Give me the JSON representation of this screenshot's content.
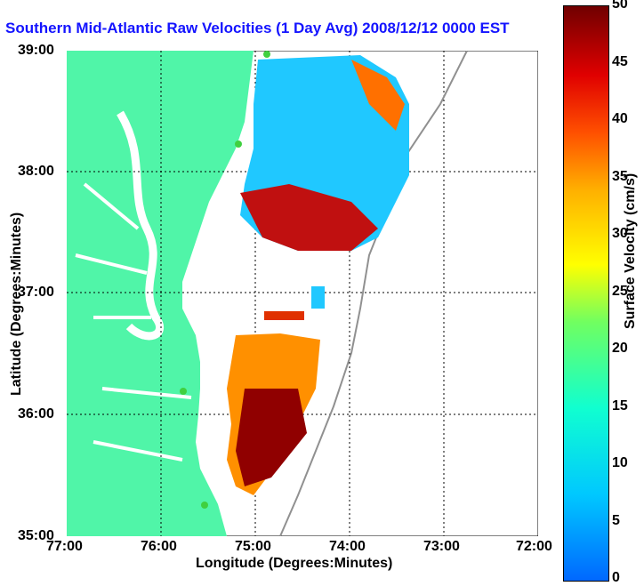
{
  "title": "Southern Mid-Atlantic Raw Velocities (1 Day Avg) 2008/12/12 0000 EST",
  "x_axis": {
    "label": "Longitude (Degrees:Minutes)",
    "ticks": [
      "77:00",
      "76:00",
      "75:00",
      "74:00",
      "73:00",
      "72:00"
    ]
  },
  "y_axis": {
    "label": "Latitude (Degrees:Minutes)",
    "ticks": [
      "39:00",
      "38:00",
      "37:00",
      "36:00",
      "35:00"
    ]
  },
  "colorbar": {
    "label": "Surface Velocity (cm/s)",
    "ticks": [
      "50",
      "45",
      "40",
      "35",
      "30",
      "25",
      "20",
      "15",
      "10",
      "5",
      "0"
    ]
  },
  "colors": {
    "land": "#50f5a8",
    "title": "#1414ff",
    "station": "#40d040"
  }
}
